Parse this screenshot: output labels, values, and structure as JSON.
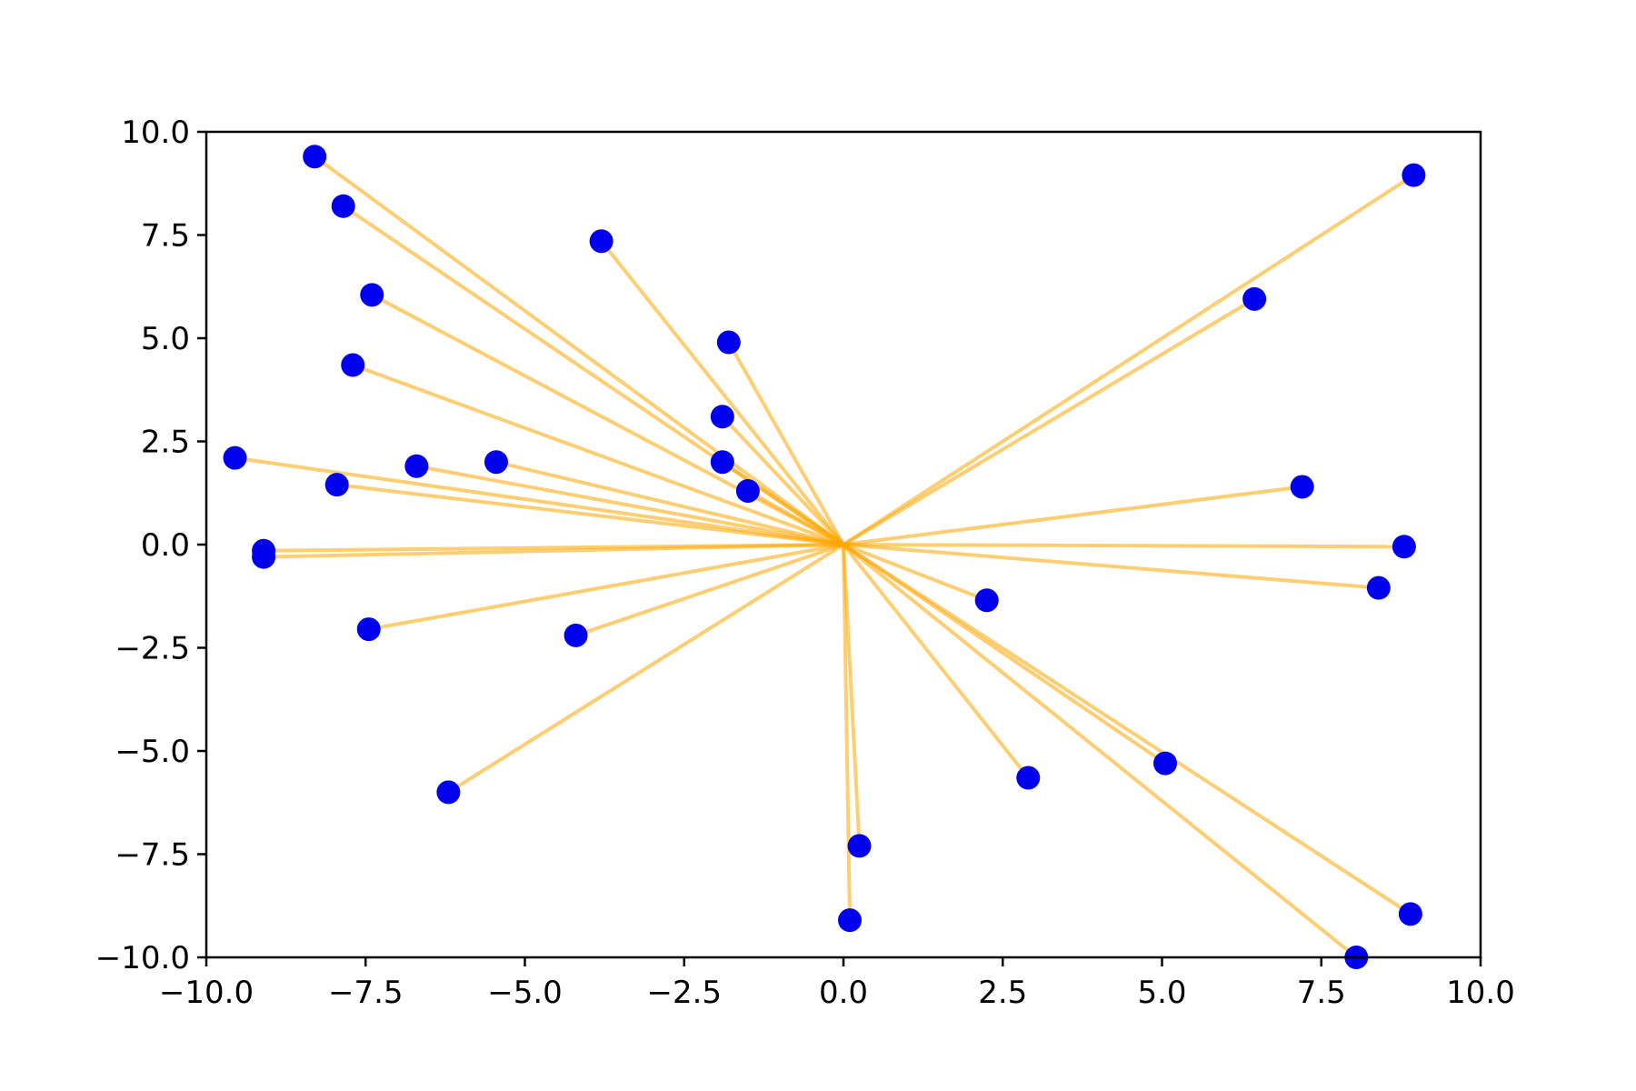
{
  "chart_data": {
    "type": "scatter",
    "title": "",
    "xlabel": "",
    "ylabel": "",
    "xlim": [
      -10.0,
      10.0
    ],
    "ylim": [
      -10.0,
      10.0
    ],
    "grid": false,
    "legend": "none",
    "origin": [
      0,
      0
    ],
    "colors": {
      "points": "#0000ee",
      "lines": "#ffa500"
    },
    "x_ticks": [
      "−10.0",
      "−7.5",
      "−5.0",
      "−2.5",
      "0.0",
      "2.5",
      "5.0",
      "7.5",
      "10.0"
    ],
    "y_ticks": [
      "10.0",
      "7.5",
      "5.0",
      "2.5",
      "0.0",
      "−2.5",
      "−5.0",
      "−7.5",
      "−10.0"
    ],
    "points": [
      [
        -8.3,
        9.4
      ],
      [
        -7.85,
        8.2
      ],
      [
        -3.8,
        7.35
      ],
      [
        -7.4,
        6.05
      ],
      [
        -7.7,
        4.35
      ],
      [
        -1.8,
        4.9
      ],
      [
        -1.9,
        3.1
      ],
      [
        -1.9,
        2.0
      ],
      [
        -1.5,
        1.3
      ],
      [
        -9.55,
        2.1
      ],
      [
        -6.7,
        1.9
      ],
      [
        -5.45,
        2.0
      ],
      [
        -7.95,
        1.45
      ],
      [
        -9.1,
        -0.15
      ],
      [
        -9.1,
        -0.3
      ],
      [
        -7.45,
        -2.05
      ],
      [
        -4.2,
        -2.2
      ],
      [
        -6.2,
        -6.0
      ],
      [
        0.1,
        -9.1
      ],
      [
        0.25,
        -7.3
      ],
      [
        2.25,
        -1.35
      ],
      [
        2.9,
        -5.65
      ],
      [
        5.05,
        -5.3
      ],
      [
        8.05,
        -10.0
      ],
      [
        8.9,
        -8.95
      ],
      [
        8.4,
        -1.05
      ],
      [
        8.8,
        -0.05
      ],
      [
        7.2,
        1.4
      ],
      [
        6.45,
        5.95
      ],
      [
        8.95,
        8.95
      ]
    ]
  }
}
